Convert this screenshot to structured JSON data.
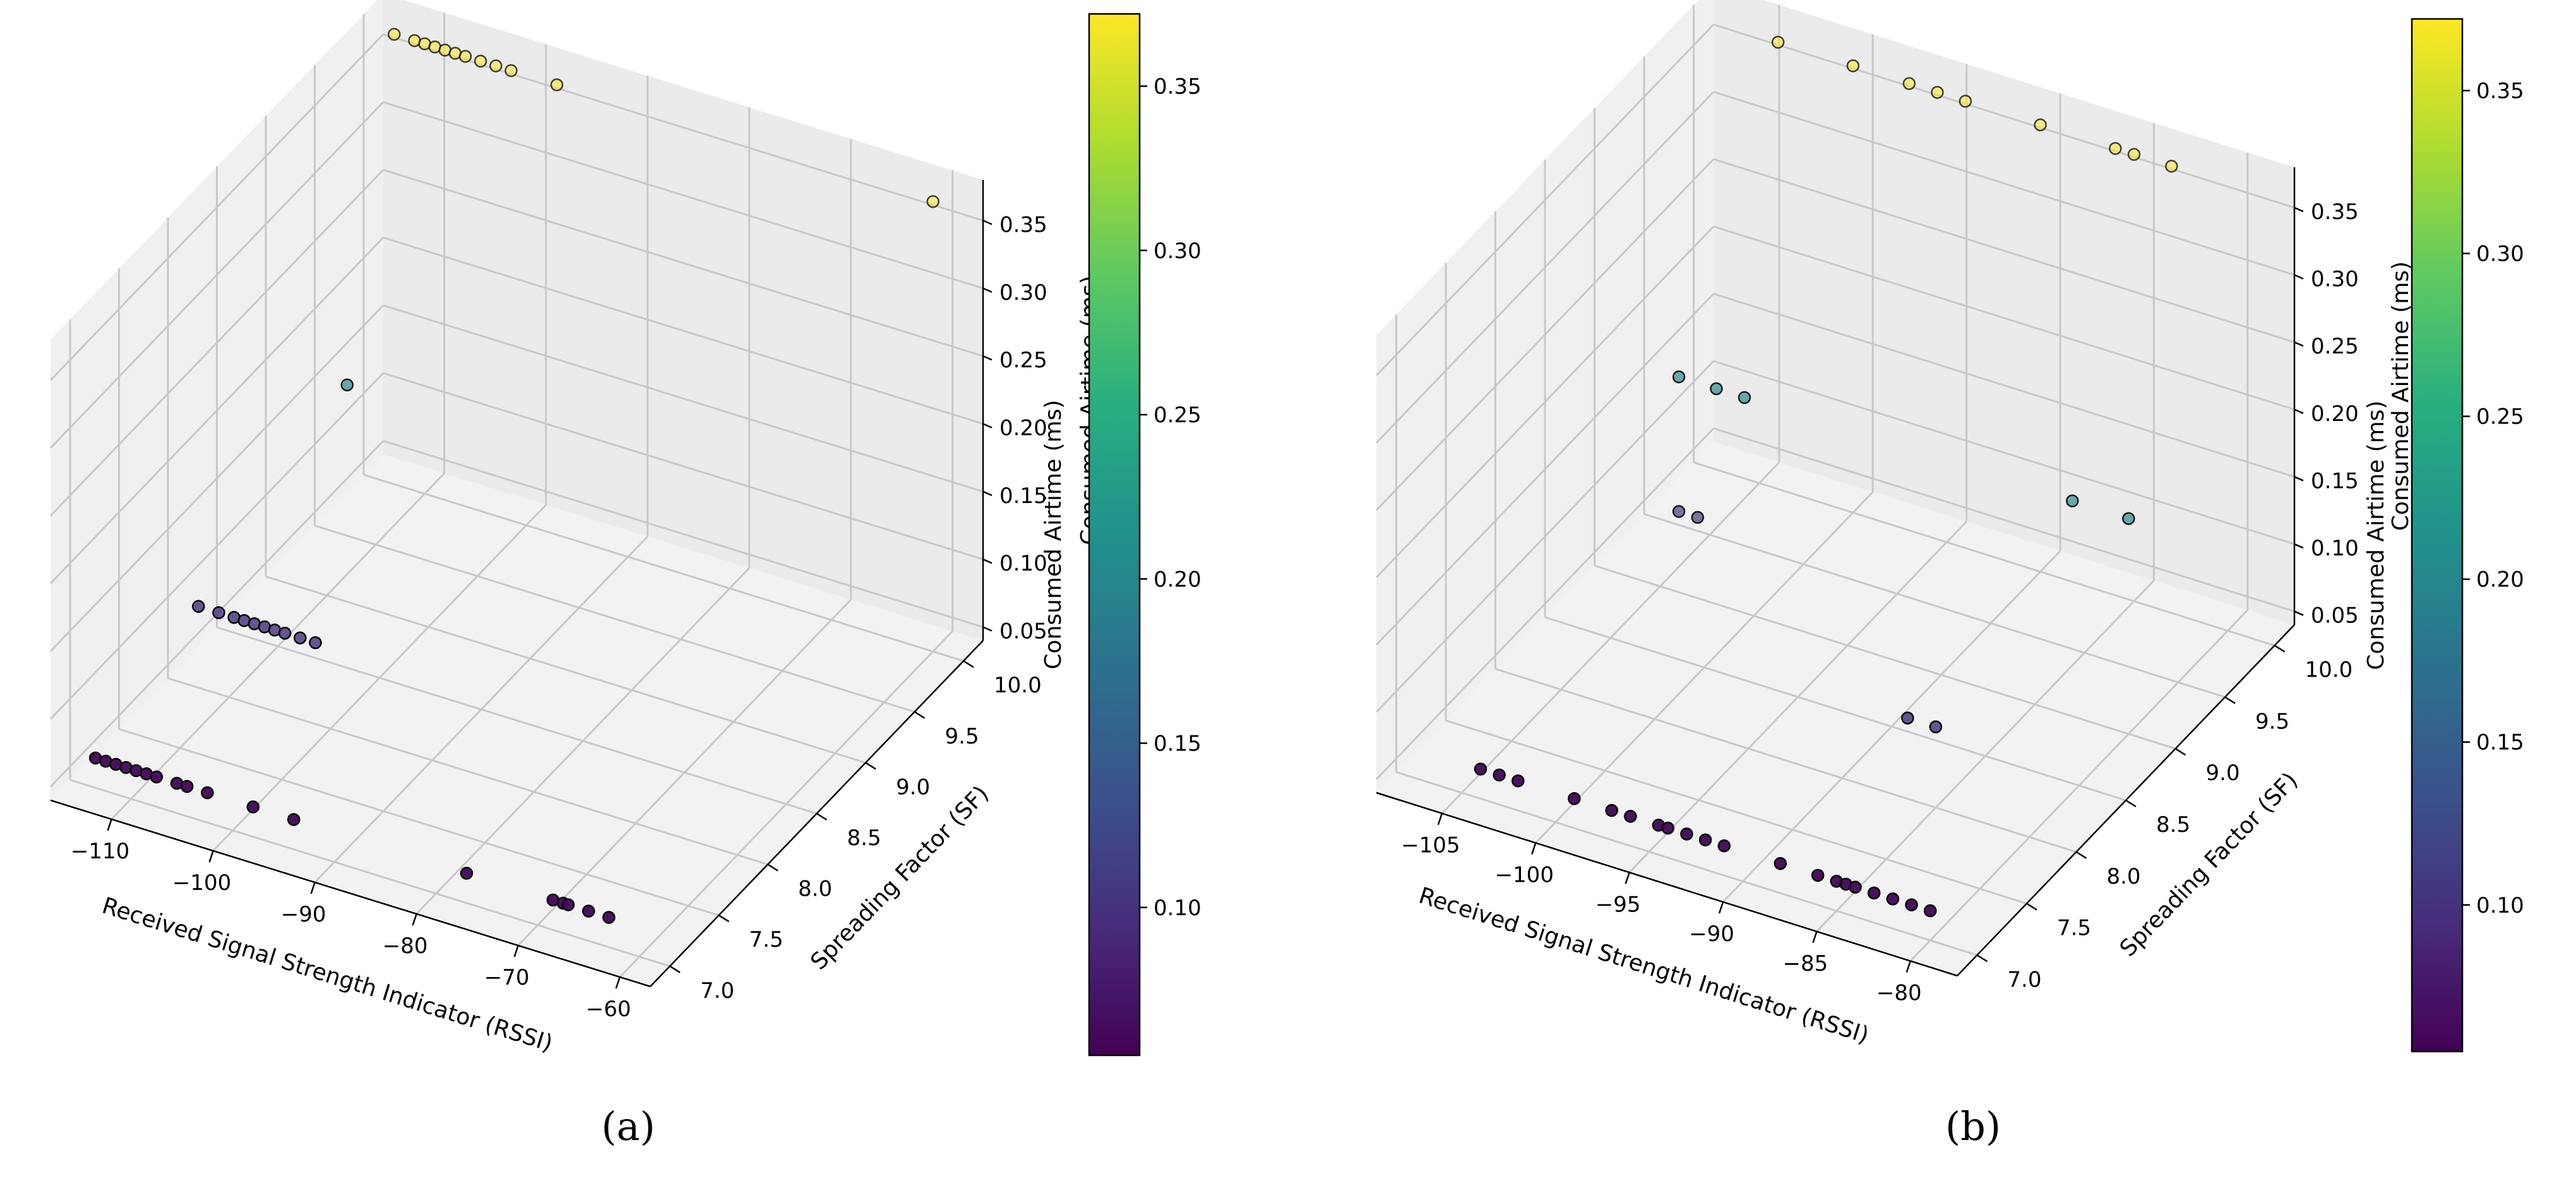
{
  "colors": {
    "pane_floor": "#f2f2f2",
    "pane_left": "#f0f0f0",
    "pane_back": "#ebebeb",
    "grid": "#c8c8c8",
    "point_edge": "#000000"
  },
  "chart_data": [
    {
      "type": "scatter3d",
      "panel_label": "(a)",
      "xlabel": "Received Signal Strength Indicator (RSSI)",
      "ylabel": "Spreading Factor (SF)",
      "zlabel": "Consumed Airtime (ms)",
      "xlim": [
        -116,
        -57
      ],
      "ylim": [
        6.8,
        10.2
      ],
      "zlim": [
        0.04,
        0.38
      ],
      "xticks": [
        -110,
        -100,
        -90,
        -80,
        -70,
        -60
      ],
      "yticks": [
        7.0,
        7.5,
        8.0,
        8.5,
        9.0,
        9.5,
        10.0
      ],
      "zticks": [
        0.05,
        0.1,
        0.15,
        0.2,
        0.25,
        0.3,
        0.35
      ],
      "colorbar": {
        "label": "Consumed Airtime (ms)",
        "range": [
          0.055,
          0.372
        ],
        "ticks": [
          0.1,
          0.15,
          0.2,
          0.25,
          0.3,
          0.35
        ]
      },
      "points": [
        {
          "rssi": -113.5,
          "sf": 7,
          "airtime": 0.062
        },
        {
          "rssi": -112.5,
          "sf": 7,
          "airtime": 0.062
        },
        {
          "rssi": -111.5,
          "sf": 7,
          "airtime": 0.062
        },
        {
          "rssi": -110.5,
          "sf": 7,
          "airtime": 0.062
        },
        {
          "rssi": -109.5,
          "sf": 7,
          "airtime": 0.062
        },
        {
          "rssi": -108.5,
          "sf": 7,
          "airtime": 0.062
        },
        {
          "rssi": -107.5,
          "sf": 7,
          "airtime": 0.062
        },
        {
          "rssi": -105.5,
          "sf": 7,
          "airtime": 0.062
        },
        {
          "rssi": -104.5,
          "sf": 7,
          "airtime": 0.062
        },
        {
          "rssi": -102.5,
          "sf": 7,
          "airtime": 0.062
        },
        {
          "rssi": -98.0,
          "sf": 7,
          "airtime": 0.062
        },
        {
          "rssi": -94.0,
          "sf": 7,
          "airtime": 0.062
        },
        {
          "rssi": -77.0,
          "sf": 7,
          "airtime": 0.062
        },
        {
          "rssi": -68.5,
          "sf": 7,
          "airtime": 0.062
        },
        {
          "rssi": -67.5,
          "sf": 7,
          "airtime": 0.062
        },
        {
          "rssi": -67.0,
          "sf": 7,
          "airtime": 0.062
        },
        {
          "rssi": -65.0,
          "sf": 7,
          "airtime": 0.062
        },
        {
          "rssi": -63.0,
          "sf": 7,
          "airtime": 0.062
        },
        {
          "rssi": -113.0,
          "sf": 8,
          "airtime": 0.1
        },
        {
          "rssi": -111.0,
          "sf": 8,
          "airtime": 0.1
        },
        {
          "rssi": -109.5,
          "sf": 8,
          "airtime": 0.1
        },
        {
          "rssi": -108.5,
          "sf": 8,
          "airtime": 0.1
        },
        {
          "rssi": -107.5,
          "sf": 8,
          "airtime": 0.1
        },
        {
          "rssi": -106.5,
          "sf": 8,
          "airtime": 0.1
        },
        {
          "rssi": -105.5,
          "sf": 8,
          "airtime": 0.1
        },
        {
          "rssi": -104.5,
          "sf": 8,
          "airtime": 0.1
        },
        {
          "rssi": -103.0,
          "sf": 8,
          "airtime": 0.1
        },
        {
          "rssi": -101.5,
          "sf": 8,
          "airtime": 0.1
        },
        {
          "rssi": -108.0,
          "sf": 9,
          "airtime": 0.2
        },
        {
          "rssi": -113.0,
          "sf": 10,
          "airtime": 0.372
        },
        {
          "rssi": -111.0,
          "sf": 10,
          "airtime": 0.372
        },
        {
          "rssi": -110.0,
          "sf": 10,
          "airtime": 0.372
        },
        {
          "rssi": -109.0,
          "sf": 10,
          "airtime": 0.372
        },
        {
          "rssi": -108.0,
          "sf": 10,
          "airtime": 0.372
        },
        {
          "rssi": -107.0,
          "sf": 10,
          "airtime": 0.372
        },
        {
          "rssi": -106.0,
          "sf": 10,
          "airtime": 0.372
        },
        {
          "rssi": -104.5,
          "sf": 10,
          "airtime": 0.372
        },
        {
          "rssi": -103.0,
          "sf": 10,
          "airtime": 0.372
        },
        {
          "rssi": -101.5,
          "sf": 10,
          "airtime": 0.372
        },
        {
          "rssi": -97.0,
          "sf": 10,
          "airtime": 0.372
        },
        {
          "rssi": -60.0,
          "sf": 10,
          "airtime": 0.372
        }
      ]
    },
    {
      "type": "scatter3d",
      "panel_label": "(b)",
      "xlabel": "Received Signal Strength Indicator (RSSI)",
      "ylabel": "Spreading Factor (SF)",
      "zlabel": "Consumed Airtime (ms)",
      "xlim": [
        -108.5,
        -77.5
      ],
      "ylim": [
        6.8,
        10.2
      ],
      "zlim": [
        0.04,
        0.38
      ],
      "xticks": [
        -105,
        -100,
        -95,
        -90,
        -85,
        -80
      ],
      "yticks": [
        7.0,
        7.5,
        8.0,
        8.5,
        9.0,
        9.5,
        10.0
      ],
      "zticks": [
        0.05,
        0.1,
        0.15,
        0.2,
        0.25,
        0.3,
        0.35
      ],
      "colorbar": {
        "label": "Consumed Airtime (ms)",
        "range": [
          0.055,
          0.372
        ],
        "ticks": [
          0.1,
          0.15,
          0.2,
          0.25,
          0.3,
          0.35
        ]
      },
      "points": [
        {
          "rssi": -104.0,
          "sf": 7,
          "airtime": 0.062
        },
        {
          "rssi": -103.0,
          "sf": 7,
          "airtime": 0.062
        },
        {
          "rssi": -102.0,
          "sf": 7,
          "airtime": 0.062
        },
        {
          "rssi": -99.0,
          "sf": 7,
          "airtime": 0.062
        },
        {
          "rssi": -97.0,
          "sf": 7,
          "airtime": 0.062
        },
        {
          "rssi": -96.0,
          "sf": 7,
          "airtime": 0.062
        },
        {
          "rssi": -94.5,
          "sf": 7,
          "airtime": 0.062
        },
        {
          "rssi": -94.0,
          "sf": 7,
          "airtime": 0.062
        },
        {
          "rssi": -93.0,
          "sf": 7,
          "airtime": 0.062
        },
        {
          "rssi": -92.0,
          "sf": 7,
          "airtime": 0.062
        },
        {
          "rssi": -91.0,
          "sf": 7,
          "airtime": 0.062
        },
        {
          "rssi": -88.0,
          "sf": 7,
          "airtime": 0.062
        },
        {
          "rssi": -86.0,
          "sf": 7,
          "airtime": 0.062
        },
        {
          "rssi": -85.0,
          "sf": 7,
          "airtime": 0.062
        },
        {
          "rssi": -84.5,
          "sf": 7,
          "airtime": 0.062
        },
        {
          "rssi": -84.0,
          "sf": 7,
          "airtime": 0.062
        },
        {
          "rssi": -83.0,
          "sf": 7,
          "airtime": 0.062
        },
        {
          "rssi": -82.0,
          "sf": 7,
          "airtime": 0.062
        },
        {
          "rssi": -81.0,
          "sf": 7,
          "airtime": 0.062
        },
        {
          "rssi": -80.0,
          "sf": 7,
          "airtime": 0.062
        },
        {
          "rssi": -86.5,
          "sf": 8,
          "airtime": 0.1
        },
        {
          "rssi": -85.0,
          "sf": 8,
          "airtime": 0.1
        },
        {
          "rssi": -104.0,
          "sf": 9,
          "airtime": 0.1
        },
        {
          "rssi": -103.0,
          "sf": 9,
          "airtime": 0.1
        },
        {
          "rssi": -104.0,
          "sf": 9,
          "airtime": 0.2
        },
        {
          "rssi": -102.0,
          "sf": 9,
          "airtime": 0.2
        },
        {
          "rssi": -100.5,
          "sf": 9,
          "airtime": 0.2
        },
        {
          "rssi": -83.0,
          "sf": 9,
          "airtime": 0.2
        },
        {
          "rssi": -80.0,
          "sf": 9,
          "airtime": 0.2
        },
        {
          "rssi": -104.0,
          "sf": 10,
          "airtime": 0.372
        },
        {
          "rssi": -100.0,
          "sf": 10,
          "airtime": 0.372
        },
        {
          "rssi": -97.0,
          "sf": 10,
          "airtime": 0.372
        },
        {
          "rssi": -95.5,
          "sf": 10,
          "airtime": 0.372
        },
        {
          "rssi": -94.0,
          "sf": 10,
          "airtime": 0.372
        },
        {
          "rssi": -90.0,
          "sf": 10,
          "airtime": 0.372
        },
        {
          "rssi": -86.0,
          "sf": 10,
          "airtime": 0.372
        },
        {
          "rssi": -85.0,
          "sf": 10,
          "airtime": 0.372
        },
        {
          "rssi": -83.0,
          "sf": 10,
          "airtime": 0.372
        }
      ]
    }
  ]
}
